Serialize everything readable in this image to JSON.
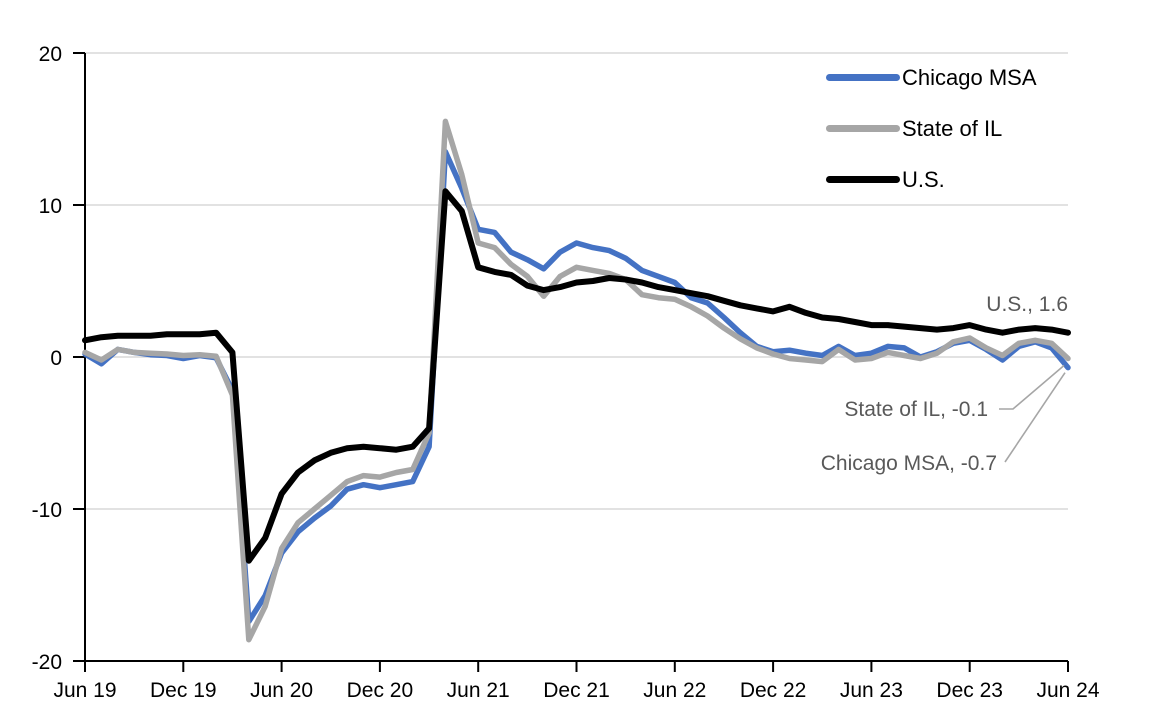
{
  "chart_data": {
    "type": "line",
    "title": "",
    "xlabel": "",
    "ylabel": "",
    "y_axis": {
      "min": -20,
      "max": 20,
      "step": 10,
      "tick_labels": [
        "20",
        "10",
        "0",
        "-10",
        "-20"
      ]
    },
    "x_tick_labels": [
      "Jun 19",
      "Dec 19",
      "Jun 20",
      "Dec 20",
      "Jun 21",
      "Dec 21",
      "Jun 22",
      "Dec 22",
      "Jun 23",
      "Dec 23",
      "Jun 24"
    ],
    "x": [
      "Jun 19",
      "Jul 19",
      "Aug 19",
      "Sep 19",
      "Oct 19",
      "Nov 19",
      "Dec 19",
      "Jan 20",
      "Feb 20",
      "Mar 20",
      "Apr 20",
      "May 20",
      "Jun 20",
      "Jul 20",
      "Aug 20",
      "Sep 20",
      "Oct 20",
      "Nov 20",
      "Dec 20",
      "Jan 21",
      "Feb 21",
      "Mar 21",
      "Apr 21",
      "May 21",
      "Jun 21",
      "Jul 21",
      "Aug 21",
      "Sep 21",
      "Oct 21",
      "Nov 21",
      "Dec 21",
      "Jan 22",
      "Feb 22",
      "Mar 22",
      "Apr 22",
      "May 22",
      "Jun 22",
      "Jul 22",
      "Aug 22",
      "Sep 22",
      "Oct 22",
      "Nov 22",
      "Dec 22",
      "Jan 23",
      "Feb 23",
      "Mar 23",
      "Apr 23",
      "May 23",
      "Jun 23",
      "Jul 23",
      "Aug 23",
      "Sep 23",
      "Oct 23",
      "Nov 23",
      "Dec 23",
      "Jan 24",
      "Feb 24",
      "Mar 24",
      "Apr 24",
      "May 24",
      "Jun 24"
    ],
    "grid": {
      "horizontal": true,
      "vertical": false
    },
    "legend": {
      "position": "top-right"
    },
    "series": [
      {
        "name": "Chicago MSA",
        "color": "#4472C4",
        "stroke_width": 5.5,
        "values": [
          0.2,
          -0.45,
          0.5,
          0.3,
          0.15,
          0.1,
          -0.1,
          0.1,
          -0.05,
          -2.2,
          -17.4,
          -15.7,
          -12.9,
          -11.5,
          -10.6,
          -9.8,
          -8.7,
          -8.4,
          -8.6,
          -8.4,
          -8.2,
          -5.9,
          13.5,
          11.1,
          8.4,
          8.2,
          6.9,
          6.4,
          5.8,
          6.9,
          7.5,
          7.2,
          7.0,
          6.5,
          5.7,
          5.3,
          4.9,
          3.9,
          3.55,
          2.6,
          1.6,
          0.7,
          0.35,
          0.45,
          0.25,
          0.1,
          0.7,
          0.1,
          0.25,
          0.7,
          0.6,
          0.0,
          0.35,
          0.9,
          1.1,
          0.5,
          -0.2,
          0.7,
          1.0,
          0.6,
          -0.7
        ]
      },
      {
        "name": "State of IL",
        "color": "#A6A6A6",
        "stroke_width": 5.5,
        "values": [
          0.3,
          -0.2,
          0.5,
          0.3,
          0.25,
          0.2,
          0.1,
          0.15,
          0.05,
          -2.5,
          -18.6,
          -16.4,
          -12.6,
          -10.9,
          -10.0,
          -9.1,
          -8.2,
          -7.8,
          -7.9,
          -7.6,
          -7.4,
          -5.0,
          15.5,
          12.0,
          7.5,
          7.2,
          6.1,
          5.3,
          4.0,
          5.3,
          5.9,
          5.7,
          5.5,
          5.1,
          4.1,
          3.9,
          3.8,
          3.3,
          2.7,
          1.9,
          1.2,
          0.6,
          0.2,
          -0.1,
          -0.2,
          -0.3,
          0.5,
          -0.2,
          -0.1,
          0.3,
          0.1,
          -0.1,
          0.25,
          1.0,
          1.25,
          0.6,
          0.1,
          0.9,
          1.1,
          0.9,
          -0.1
        ]
      },
      {
        "name": "U.S.",
        "color": "#000000",
        "stroke_width": 6,
        "values": [
          1.1,
          1.3,
          1.4,
          1.4,
          1.4,
          1.5,
          1.5,
          1.5,
          1.6,
          0.3,
          -13.4,
          -11.9,
          -9.0,
          -7.6,
          -6.8,
          -6.3,
          -6.0,
          -5.9,
          -6.0,
          -6.1,
          -5.9,
          -4.7,
          10.9,
          9.6,
          5.9,
          5.6,
          5.4,
          4.7,
          4.4,
          4.6,
          4.9,
          5.0,
          5.2,
          5.1,
          4.9,
          4.6,
          4.4,
          4.2,
          4.0,
          3.7,
          3.4,
          3.2,
          3.0,
          3.3,
          2.9,
          2.6,
          2.5,
          2.3,
          2.1,
          2.1,
          2.0,
          1.9,
          1.8,
          1.9,
          2.1,
          1.8,
          1.6,
          1.8,
          1.9,
          1.8,
          1.6
        ]
      }
    ],
    "annotations": [
      {
        "text": "U.S., 1.6",
        "series": "U.S.",
        "value": 1.6
      },
      {
        "text": "State of IL, -0.1",
        "series": "State of IL",
        "value": -0.1
      },
      {
        "text": "Chicago MSA, -0.7",
        "series": "Chicago MSA",
        "value": -0.7
      }
    ]
  },
  "colors": {
    "background": "#FFFFFF",
    "axis": "#000000",
    "gridline": "#D9D9D9",
    "tick_label": "#000000",
    "annotation_text": "#595959",
    "leader_line": "#A6A6A6"
  }
}
